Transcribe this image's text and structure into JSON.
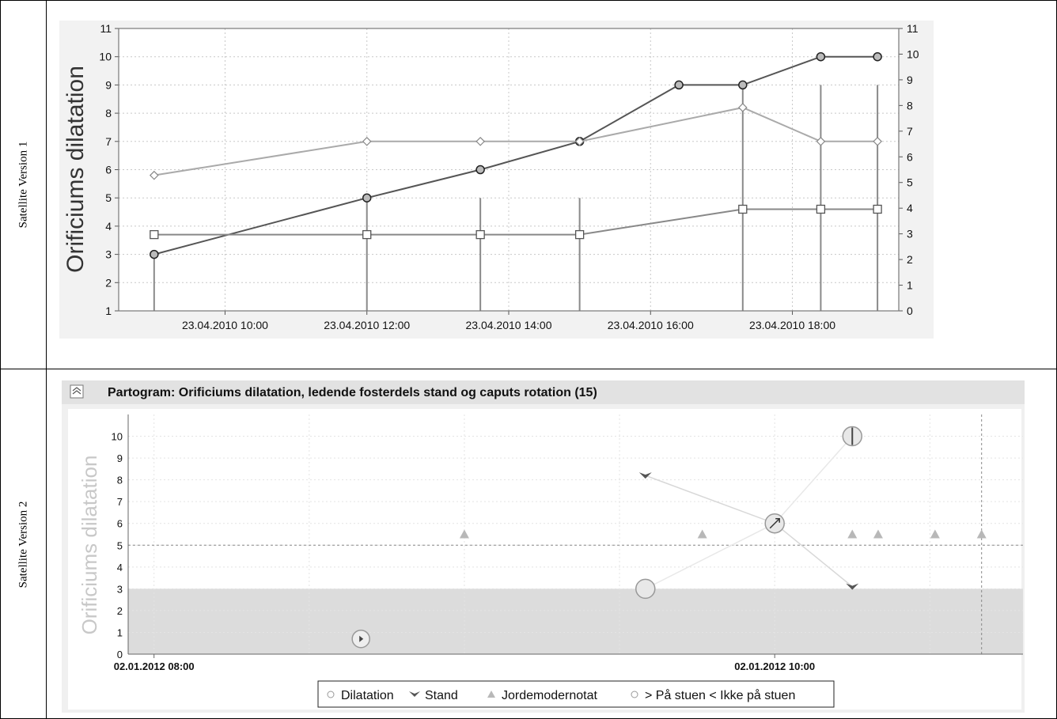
{
  "rows": [
    {
      "label": "Satellite Version 1"
    },
    {
      "label": "Satellite Version 2"
    }
  ],
  "chart_data": [
    {
      "type": "line",
      "title": "",
      "ylabel": "Orificiums dilatation",
      "xlabel": "",
      "x_ticks": [
        "23.04.2010 10:00",
        "23.04.2010 12:00",
        "23.04.2010 14:00",
        "23.04.2010 16:00",
        "23.04.2010 18:00"
      ],
      "x_tick_hours": [
        10,
        12,
        14,
        16,
        18
      ],
      "x_range_hours": [
        8.5,
        19.5
      ],
      "ylim_left": [
        1,
        11
      ],
      "ylim_right": [
        0,
        11
      ],
      "y_ticks_left": [
        1,
        2,
        3,
        4,
        5,
        6,
        7,
        8,
        9,
        10,
        11
      ],
      "y_ticks_right": [
        0,
        1,
        2,
        3,
        4,
        5,
        6,
        7,
        8,
        9,
        10,
        11
      ],
      "grid": true,
      "series": [
        {
          "marker": "circle",
          "color": "#555555",
          "x_hours": [
            9.0,
            12.0,
            13.6,
            15.0,
            16.4,
            17.3,
            18.4,
            19.2
          ],
          "values": [
            3,
            5,
            6,
            7,
            9,
            9,
            10,
            10
          ]
        },
        {
          "marker": "diamond",
          "color": "#aaaaaa",
          "x_hours": [
            9.0,
            12.0,
            13.6,
            15.0,
            17.3,
            18.4,
            19.2
          ],
          "values": [
            5.8,
            7,
            7,
            7,
            8.2,
            7,
            7
          ]
        },
        {
          "marker": "square",
          "color": "#888888",
          "x_hours": [
            9.0,
            12.0,
            13.6,
            15.0,
            17.3,
            18.4,
            19.2
          ],
          "values": [
            3.7,
            3.7,
            3.7,
            3.7,
            4.6,
            4.6,
            4.6
          ]
        }
      ],
      "vertical_bars": [
        {
          "x_hours": 9.0,
          "top": 3
        },
        {
          "x_hours": 12.0,
          "top": 5
        },
        {
          "x_hours": 13.6,
          "top": 5
        },
        {
          "x_hours": 15.0,
          "top": 5
        },
        {
          "x_hours": 17.3,
          "top": 9
        },
        {
          "x_hours": 18.4,
          "top": 9
        },
        {
          "x_hours": 19.2,
          "top": 9
        }
      ]
    },
    {
      "type": "scatter",
      "title": "Partogram: Orificiums dilatation, ledende fosterdels stand og caputs rotation (15)",
      "ylabel": "Orificiums dilatation",
      "xlabel": "",
      "x_ticks": [
        "02.01.2012 08:00",
        "02.01.2012 10:00"
      ],
      "x_tick_minutes": [
        0,
        120
      ],
      "x_range_minutes": [
        -5,
        168
      ],
      "ylim": [
        0,
        11
      ],
      "y_ticks": [
        0,
        1,
        2,
        3,
        4,
        5,
        6,
        7,
        8,
        9,
        10
      ],
      "shaded_band": [
        0,
        3
      ],
      "dashed_lines": {
        "y": 5,
        "x_minutes": 160
      },
      "legend": [
        "Dilatation",
        "Stand",
        "Jordemodernotat",
        "> På stuen < Ikke på stuen"
      ],
      "legend_position": "bottom",
      "series": [
        {
          "name": "Dilatation",
          "points": [
            {
              "x": 95,
              "y": 3
            },
            {
              "x": 120,
              "y": 6
            },
            {
              "x": 135,
              "y": 10
            }
          ]
        },
        {
          "name": "Stand",
          "points": [
            {
              "x": 95,
              "y": 8.2
            },
            {
              "x": 120,
              "y": 6
            },
            {
              "x": 135,
              "y": 3.1
            }
          ]
        },
        {
          "name": "Jordemodernotat",
          "points": [
            {
              "x": 60,
              "y": 5.5
            },
            {
              "x": 106,
              "y": 5.5
            },
            {
              "x": 135,
              "y": 5.5
            },
            {
              "x": 140,
              "y": 5.5
            },
            {
              "x": 151,
              "y": 5.5
            },
            {
              "x": 160,
              "y": 5.5
            }
          ]
        },
        {
          "name": "> På stuen < Ikke på stuen",
          "points": [
            {
              "x": 40,
              "y": 0.7
            }
          ]
        }
      ]
    }
  ]
}
